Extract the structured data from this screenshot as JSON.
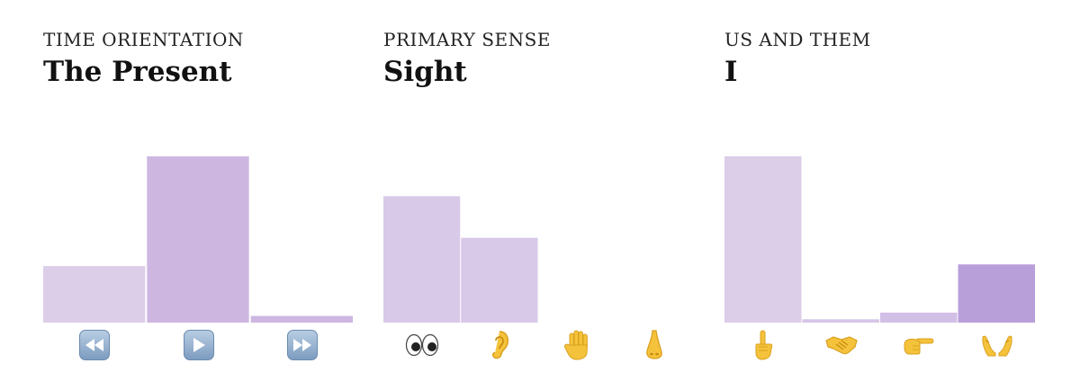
{
  "colors": {
    "bar_light": "#dccde9",
    "bar_mid": "#cdb7e1",
    "bar_strong": "#b99fda",
    "skin": "#f5c33b",
    "skin_dark": "#d9a01e",
    "media_button": "#8fadd0"
  },
  "panels": [
    {
      "kicker": "TIME ORIENTATION",
      "title": "The Present",
      "icons": [
        "rewind-button-icon",
        "play-button-icon",
        "fast-forward-button-icon"
      ]
    },
    {
      "kicker": "PRIMARY SENSE",
      "title": "Sight",
      "icons": [
        "eyes-icon",
        "ear-icon",
        "raised-hand-icon",
        "nose-icon"
      ]
    },
    {
      "kicker": "US AND THEM",
      "title": "I",
      "icons": [
        "index-pointing-up-icon",
        "handshake-icon",
        "backhand-index-pointing-right-icon",
        "open-hands-icon"
      ]
    }
  ],
  "chart_data": [
    {
      "type": "bar",
      "categories": [
        "past",
        "present",
        "future"
      ],
      "values": [
        34,
        100,
        4
      ],
      "ylim": [
        0,
        100
      ],
      "bar_colors": [
        "#dccde9",
        "#cdb7e1",
        "#cdb7e1"
      ],
      "grid": false,
      "legend": "none"
    },
    {
      "type": "bar",
      "categories": [
        "sight",
        "hearing",
        "touch",
        "smell"
      ],
      "values": [
        76,
        51,
        0,
        0
      ],
      "ylim": [
        0,
        100
      ],
      "bar_colors": [
        "#d9c9e8",
        "#d9c9e8",
        "#d9c9e8",
        "#d9c9e8"
      ],
      "grid": false,
      "legend": "none"
    },
    {
      "type": "bar",
      "categories": [
        "I",
        "we",
        "you",
        "they"
      ],
      "values": [
        100,
        2,
        6,
        35
      ],
      "ylim": [
        0,
        100
      ],
      "bar_colors": [
        "#dccde9",
        "#d6c6e8",
        "#d2bfe6",
        "#b99fda"
      ],
      "grid": false,
      "legend": "none"
    }
  ]
}
